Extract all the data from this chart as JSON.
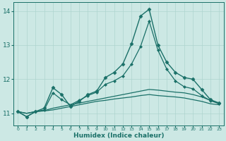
{
  "xlabel": "Humidex (Indice chaleur)",
  "xlim": [
    -0.5,
    23.5
  ],
  "ylim": [
    10.65,
    14.25
  ],
  "yticks": [
    11,
    12,
    13,
    14
  ],
  "xticks": [
    0,
    1,
    2,
    3,
    4,
    5,
    6,
    7,
    8,
    9,
    10,
    11,
    12,
    13,
    14,
    15,
    16,
    17,
    18,
    19,
    20,
    21,
    22,
    23
  ],
  "background_color": "#cce8e4",
  "grid_color": "#aed4cf",
  "line_color": "#1a7068",
  "lines": [
    {
      "x": [
        0,
        1,
        2,
        3,
        4,
        5,
        6,
        7,
        8,
        9,
        10,
        11,
        12,
        13,
        14,
        15,
        16,
        17,
        18,
        19,
        20,
        21,
        22,
        23
      ],
      "y": [
        11.05,
        10.9,
        11.05,
        11.15,
        11.75,
        11.55,
        11.2,
        11.35,
        11.55,
        11.65,
        12.05,
        12.2,
        12.45,
        13.05,
        13.85,
        14.05,
        13.0,
        12.5,
        12.2,
        12.05,
        12.0,
        11.7,
        11.4,
        11.3
      ],
      "marker": "D",
      "markersize": 2.5,
      "linewidth": 1.0
    },
    {
      "x": [
        0,
        1,
        2,
        3,
        4,
        5,
        6,
        7,
        8,
        9,
        10,
        11,
        12,
        13,
        14,
        15,
        16,
        17,
        18,
        19,
        20,
        21,
        22,
        23
      ],
      "y": [
        11.05,
        10.9,
        11.05,
        11.1,
        11.6,
        11.4,
        11.25,
        11.38,
        11.52,
        11.62,
        11.85,
        11.95,
        12.1,
        12.45,
        12.95,
        13.7,
        12.85,
        12.3,
        11.95,
        11.78,
        11.72,
        11.52,
        11.37,
        11.28
      ],
      "marker": "D",
      "markersize": 2.0,
      "linewidth": 0.9
    },
    {
      "x": [
        0,
        1,
        2,
        3,
        4,
        5,
        6,
        7,
        8,
        9,
        10,
        11,
        12,
        13,
        14,
        15,
        16,
        17,
        18,
        19,
        20,
        21,
        22,
        23
      ],
      "y": [
        11.05,
        11.0,
        11.05,
        11.08,
        11.15,
        11.2,
        11.25,
        11.3,
        11.35,
        11.4,
        11.45,
        11.5,
        11.55,
        11.6,
        11.65,
        11.7,
        11.68,
        11.65,
        11.62,
        11.6,
        11.55,
        11.48,
        11.38,
        11.3
      ],
      "marker": null,
      "linewidth": 0.9
    },
    {
      "x": [
        0,
        1,
        2,
        3,
        4,
        5,
        6,
        7,
        8,
        9,
        10,
        11,
        12,
        13,
        14,
        15,
        16,
        17,
        18,
        19,
        20,
        21,
        22,
        23
      ],
      "y": [
        11.05,
        11.0,
        11.05,
        11.07,
        11.1,
        11.15,
        11.2,
        11.25,
        11.3,
        11.35,
        11.38,
        11.42,
        11.45,
        11.48,
        11.52,
        11.55,
        11.52,
        11.5,
        11.48,
        11.45,
        11.4,
        11.35,
        11.28,
        11.25
      ],
      "marker": null,
      "linewidth": 0.9
    }
  ]
}
